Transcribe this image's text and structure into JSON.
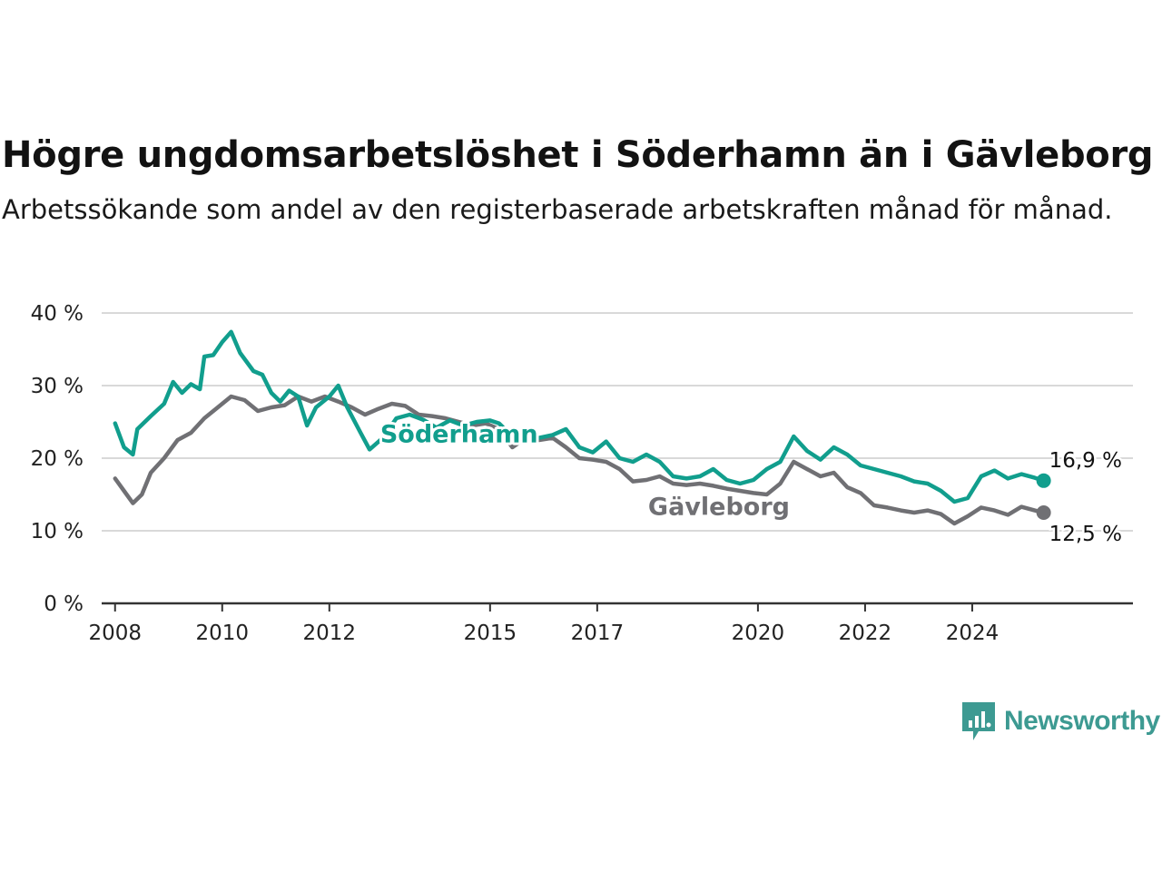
{
  "title": "Högre ungdomsarbetslöshet i Söderhamn än i Gävleborg",
  "subtitle": "Arbetssökande som andel av den registerbaserade arbetskraften månad för månad.",
  "brand": {
    "name": "Newsworthy",
    "color": "#3d9a92",
    "icon": "newsworthy-logo-icon"
  },
  "chart_data": {
    "type": "line",
    "title": "Högre ungdomsarbetslöshet i Söderhamn än i Gävleborg",
    "subtitle": "Arbetssökande som andel av den registerbaserade arbetskraften månad för månad.",
    "xlabel": "",
    "ylabel": "",
    "x_ticks": [
      "2008",
      "2010",
      "2012",
      "2015",
      "2017",
      "2020",
      "2022",
      "2024"
    ],
    "y_ticks": [
      "0 %",
      "10 %",
      "20 %",
      "30 %",
      "40 %"
    ],
    "ylim": [
      0,
      40
    ],
    "grid": true,
    "legend": "direct labels",
    "series": [
      {
        "name": "Söderhamn",
        "color": "#119e8d",
        "end_label": "16,9 %",
        "points": [
          [
            "2008-01",
            24.8
          ],
          [
            "2008-03",
            21.5
          ],
          [
            "2008-05",
            20.5
          ],
          [
            "2008-06",
            24.0
          ],
          [
            "2008-09",
            25.8
          ],
          [
            "2008-12",
            27.5
          ],
          [
            "2009-02",
            30.5
          ],
          [
            "2009-04",
            29.0
          ],
          [
            "2009-06",
            30.2
          ],
          [
            "2009-08",
            29.5
          ],
          [
            "2009-09",
            34.0
          ],
          [
            "2009-11",
            34.2
          ],
          [
            "2010-01",
            36.0
          ],
          [
            "2010-03",
            37.4
          ],
          [
            "2010-05",
            34.5
          ],
          [
            "2010-08",
            32.0
          ],
          [
            "2010-10",
            31.5
          ],
          [
            "2010-12",
            29.0
          ],
          [
            "2011-02",
            27.8
          ],
          [
            "2011-04",
            29.3
          ],
          [
            "2011-06",
            28.5
          ],
          [
            "2011-08",
            24.5
          ],
          [
            "2011-10",
            27.0
          ],
          [
            "2012-01",
            28.5
          ],
          [
            "2012-03",
            30.0
          ],
          [
            "2012-05",
            27.0
          ],
          [
            "2012-08",
            23.5
          ],
          [
            "2012-10",
            21.2
          ],
          [
            "2013-01",
            22.8
          ],
          [
            "2013-04",
            25.5
          ],
          [
            "2013-07",
            26.0
          ],
          [
            "2013-10",
            25.3
          ],
          [
            "2014-01",
            24.2
          ],
          [
            "2014-04",
            25.2
          ],
          [
            "2014-07",
            24.5
          ],
          [
            "2014-10",
            25.0
          ],
          [
            "2015-01",
            25.2
          ],
          [
            "2015-03",
            24.8
          ],
          [
            "2015-06",
            23.0
          ],
          [
            "2015-09",
            22.5
          ],
          [
            "2015-12",
            22.8
          ],
          [
            "2016-03",
            23.2
          ],
          [
            "2016-06",
            24.0
          ],
          [
            "2016-09",
            21.5
          ],
          [
            "2016-12",
            20.8
          ],
          [
            "2017-03",
            22.3
          ],
          [
            "2017-06",
            20.0
          ],
          [
            "2017-09",
            19.5
          ],
          [
            "2017-12",
            20.5
          ],
          [
            "2018-03",
            19.5
          ],
          [
            "2018-06",
            17.5
          ],
          [
            "2018-09",
            17.2
          ],
          [
            "2018-12",
            17.5
          ],
          [
            "2019-03",
            18.5
          ],
          [
            "2019-06",
            17.0
          ],
          [
            "2019-09",
            16.5
          ],
          [
            "2019-12",
            17.0
          ],
          [
            "2020-03",
            18.5
          ],
          [
            "2020-06",
            19.5
          ],
          [
            "2020-09",
            23.0
          ],
          [
            "2020-12",
            21.0
          ],
          [
            "2021-03",
            19.8
          ],
          [
            "2021-06",
            21.5
          ],
          [
            "2021-09",
            20.5
          ],
          [
            "2021-12",
            19.0
          ],
          [
            "2022-03",
            18.5
          ],
          [
            "2022-06",
            18.0
          ],
          [
            "2022-09",
            17.5
          ],
          [
            "2022-12",
            16.8
          ],
          [
            "2023-03",
            16.5
          ],
          [
            "2023-06",
            15.5
          ],
          [
            "2023-09",
            14.0
          ],
          [
            "2023-12",
            14.5
          ],
          [
            "2024-03",
            17.5
          ],
          [
            "2024-06",
            18.3
          ],
          [
            "2024-09",
            17.2
          ],
          [
            "2024-12",
            17.8
          ],
          [
            "2025-03",
            17.3
          ],
          [
            "2025-05",
            16.9
          ]
        ]
      },
      {
        "name": "Gävleborg",
        "color": "#707074",
        "end_label": "12,5 %",
        "points": [
          [
            "2008-01",
            17.2
          ],
          [
            "2008-03",
            15.5
          ],
          [
            "2008-05",
            13.8
          ],
          [
            "2008-07",
            15.0
          ],
          [
            "2008-09",
            18.0
          ],
          [
            "2008-12",
            20.0
          ],
          [
            "2009-03",
            22.5
          ],
          [
            "2009-06",
            23.5
          ],
          [
            "2009-09",
            25.5
          ],
          [
            "2009-12",
            27.0
          ],
          [
            "2010-03",
            28.5
          ],
          [
            "2010-06",
            28.0
          ],
          [
            "2010-09",
            26.5
          ],
          [
            "2010-12",
            27.0
          ],
          [
            "2011-03",
            27.3
          ],
          [
            "2011-06",
            28.5
          ],
          [
            "2011-09",
            27.8
          ],
          [
            "2011-12",
            28.5
          ],
          [
            "2012-03",
            27.8
          ],
          [
            "2012-06",
            27.0
          ],
          [
            "2012-09",
            26.0
          ],
          [
            "2012-12",
            26.8
          ],
          [
            "2013-03",
            27.5
          ],
          [
            "2013-06",
            27.2
          ],
          [
            "2013-09",
            26.0
          ],
          [
            "2013-12",
            25.8
          ],
          [
            "2014-03",
            25.5
          ],
          [
            "2014-06",
            25.0
          ],
          [
            "2014-09",
            24.5
          ],
          [
            "2014-12",
            24.8
          ],
          [
            "2015-03",
            24.0
          ],
          [
            "2015-06",
            21.5
          ],
          [
            "2015-09",
            22.8
          ],
          [
            "2015-12",
            22.5
          ],
          [
            "2016-03",
            22.8
          ],
          [
            "2016-06",
            21.5
          ],
          [
            "2016-09",
            20.0
          ],
          [
            "2016-12",
            19.8
          ],
          [
            "2017-03",
            19.5
          ],
          [
            "2017-06",
            18.5
          ],
          [
            "2017-09",
            16.8
          ],
          [
            "2017-12",
            17.0
          ],
          [
            "2018-03",
            17.5
          ],
          [
            "2018-06",
            16.5
          ],
          [
            "2018-09",
            16.3
          ],
          [
            "2018-12",
            16.5
          ],
          [
            "2019-03",
            16.2
          ],
          [
            "2019-06",
            15.8
          ],
          [
            "2019-09",
            15.5
          ],
          [
            "2019-12",
            15.2
          ],
          [
            "2020-03",
            15.0
          ],
          [
            "2020-06",
            16.5
          ],
          [
            "2020-09",
            19.5
          ],
          [
            "2020-12",
            18.5
          ],
          [
            "2021-03",
            17.5
          ],
          [
            "2021-06",
            18.0
          ],
          [
            "2021-09",
            16.0
          ],
          [
            "2021-12",
            15.2
          ],
          [
            "2022-03",
            13.5
          ],
          [
            "2022-06",
            13.2
          ],
          [
            "2022-09",
            12.8
          ],
          [
            "2022-12",
            12.5
          ],
          [
            "2023-03",
            12.8
          ],
          [
            "2023-06",
            12.3
          ],
          [
            "2023-09",
            11.0
          ],
          [
            "2023-12",
            12.0
          ],
          [
            "2024-03",
            13.2
          ],
          [
            "2024-06",
            12.8
          ],
          [
            "2024-09",
            12.2
          ],
          [
            "2024-12",
            13.3
          ],
          [
            "2025-03",
            12.8
          ],
          [
            "2025-05",
            12.5
          ]
        ]
      }
    ]
  }
}
